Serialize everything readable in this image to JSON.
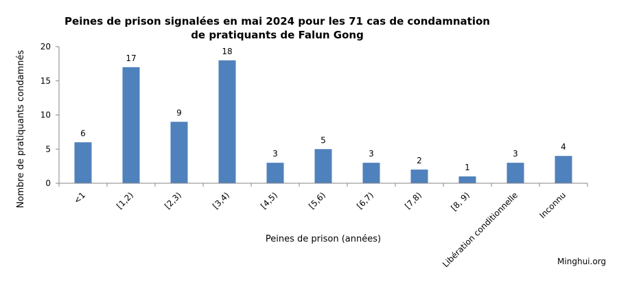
{
  "chart_data": {
    "type": "bar",
    "title_line1": "Peines de prison signalées en mai 2024 pour les 71 cas de condamnation",
    "title_line2": "de pratiquants de Falun Gong",
    "xlabel": "Peines de prison (années)",
    "ylabel": "Nombre de pratiquants condamnés",
    "ylim": [
      0,
      20
    ],
    "yticks": [
      0,
      5,
      10,
      15,
      20
    ],
    "grid": false,
    "legend": "none",
    "color": "#4f81bd",
    "categories": [
      "<1",
      "[1,2)",
      "[2,3)",
      "[3,4)",
      "[4,5)",
      "[5,6)",
      "[6,7)",
      "[7,8)",
      "[8, 9)",
      "Libération conditionnelle",
      "Inconnu"
    ],
    "values": [
      6,
      17,
      9,
      18,
      3,
      5,
      3,
      2,
      1,
      3,
      4
    ]
  },
  "credit": "Minghui.org"
}
